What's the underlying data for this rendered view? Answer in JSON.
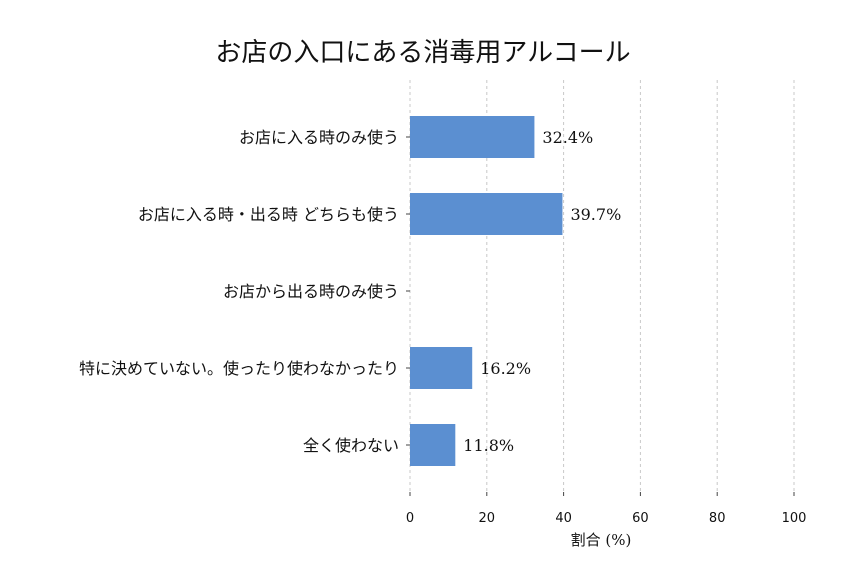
{
  "chart_data": {
    "type": "bar",
    "orientation": "horizontal",
    "title": "お店の入口にある消毒用アルコール",
    "xlabel": "割合 (%)",
    "ylabel": "",
    "xlim": [
      0,
      100
    ],
    "xticks": [
      0,
      20,
      40,
      60,
      80,
      100
    ],
    "grid": true,
    "color": "#5b8fd1",
    "categories": [
      "お店に入る時のみ使う",
      "お店に入る時・出る時 どちらも使う",
      "お店から出る時のみ使う",
      "特に決めていない。使ったり使わなかったり",
      "全く使わない"
    ],
    "values": [
      32.4,
      39.7,
      0,
      16.2,
      11.8
    ],
    "value_labels": [
      "32.4%",
      "39.7%",
      "",
      "16.2%",
      "11.8%"
    ]
  }
}
